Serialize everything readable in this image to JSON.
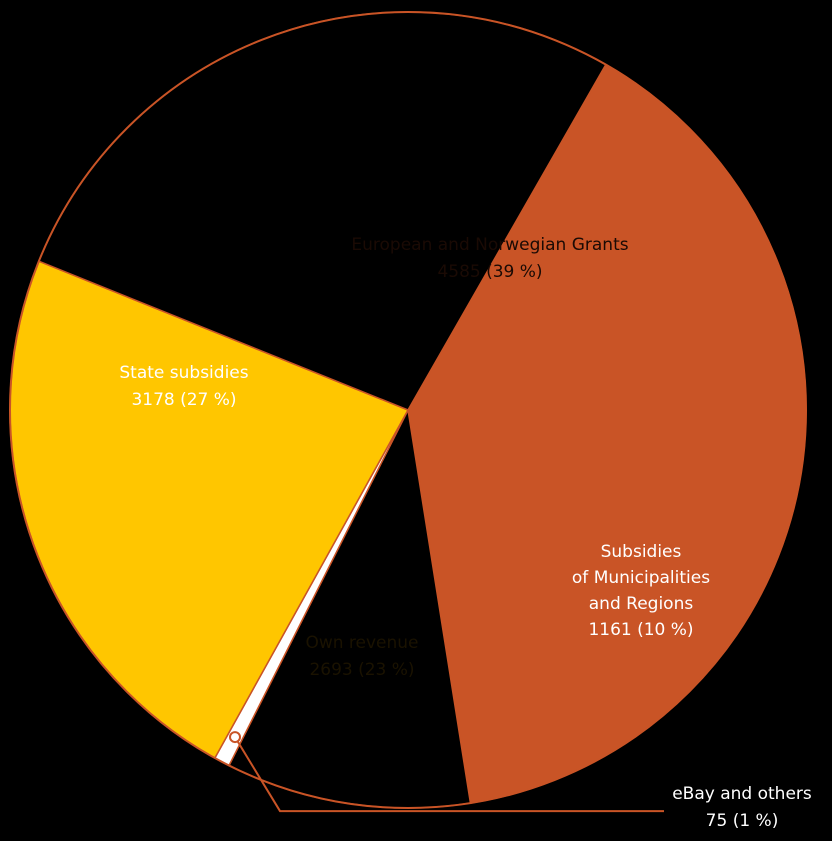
{
  "chart_data": {
    "type": "pie",
    "title": "",
    "slices": [
      {
        "label": "European and Norwegian Grants",
        "value": 4585,
        "percent_label": "4585 (39 %)",
        "color": "#C95426",
        "text_color": "#1a0a04"
      },
      {
        "label": "Subsidies\nof Municipalities\nand Regions",
        "value": 1161,
        "percent_label": "1161 (10 %)",
        "color": "#000000",
        "text_color": "#ffffff"
      },
      {
        "label": "eBay and others",
        "value": 75,
        "percent_label": "75 (1 %)",
        "color": "#FFFFFF",
        "text_color": "#ffffff"
      },
      {
        "label": "Own revenue",
        "value": 2693,
        "percent_label": "2693 (23 %)",
        "color": "#FFC600",
        "text_color": "#1a1200"
      },
      {
        "label": "State subsidies",
        "value": 3178,
        "percent_label": "3178 (27 %)",
        "color": "#000000",
        "text_color": "#ffffff"
      }
    ],
    "outline_color": "#C95426",
    "background": "#000000"
  }
}
